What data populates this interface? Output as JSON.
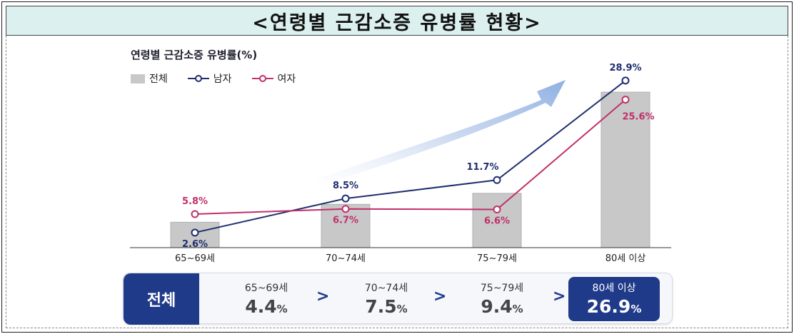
{
  "page_title": "<연령별 근감소증 유병률 현황>",
  "chart_data": {
    "type": "bar+line",
    "title": "연령별 근감소증 유병률(%)",
    "categories": [
      "65~69세",
      "70~74세",
      "75~79세",
      "80세 이상"
    ],
    "ylim": [
      0,
      30
    ],
    "series": [
      {
        "name": "전체",
        "kind": "bar",
        "color": "#c8c8c8",
        "values": [
          4.4,
          7.5,
          9.4,
          26.9
        ]
      },
      {
        "name": "남자",
        "kind": "line",
        "color": "#1f2f6e",
        "values": [
          2.6,
          8.5,
          11.7,
          28.9
        ],
        "labels": [
          "2.6%",
          "8.5%",
          "11.7%",
          "28.9%"
        ]
      },
      {
        "name": "여자",
        "kind": "line",
        "color": "#c0306a",
        "values": [
          5.8,
          6.7,
          6.6,
          25.6
        ],
        "labels": [
          "5.8%",
          "6.7%",
          "6.6%",
          "25.6%"
        ]
      }
    ],
    "legend": "top-left",
    "grid": false
  },
  "summary": {
    "label": "전체",
    "items": [
      {
        "age": "65~69세",
        "value": "4.4",
        "unit": "%"
      },
      {
        "age": "70~74세",
        "value": "7.5",
        "unit": "%"
      },
      {
        "age": "75~79세",
        "value": "9.4",
        "unit": "%"
      },
      {
        "age": "80세 이상",
        "value": "26.9",
        "unit": "%"
      }
    ],
    "arrow": ">"
  }
}
